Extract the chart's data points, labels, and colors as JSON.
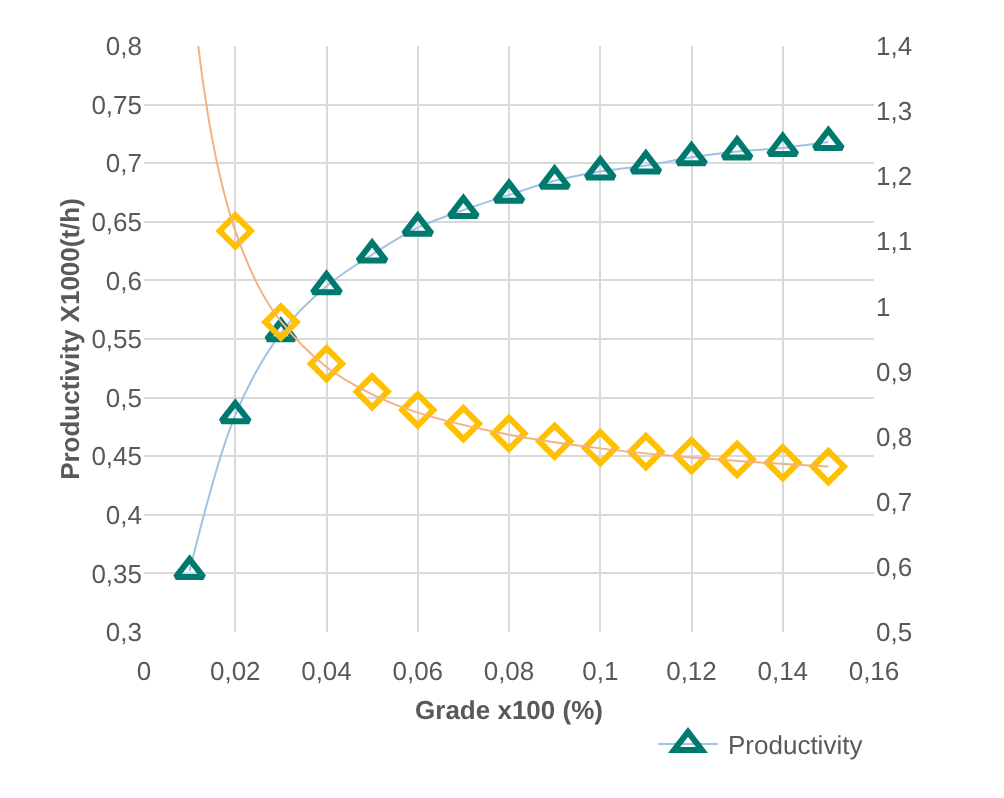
{
  "chart_data": {
    "type": "scatter",
    "xlabel": "Grade x100 (%)",
    "ylabel": "Productivity X1000(t/h)",
    "xlim": [
      0,
      0.16
    ],
    "xticks": [
      0,
      {
        "value": 0.02,
        "label": "0,02"
      },
      {
        "value": 0.04,
        "label": "0,04"
      },
      {
        "value": 0.06,
        "label": "0,06"
      },
      {
        "value": 0.08,
        "label": "0,08"
      },
      {
        "value": 0.1,
        "label": "0,1"
      },
      {
        "value": 0.12,
        "label": "0,12"
      },
      {
        "value": 0.14,
        "label": "0,14"
      },
      {
        "value": 0.16,
        "label": "0,16"
      }
    ],
    "ylim": [
      0.3,
      0.8
    ],
    "yticks": [
      {
        "value": 0.3,
        "label": "0,3"
      },
      {
        "value": 0.35,
        "label": "0,35"
      },
      {
        "value": 0.4,
        "label": "0,4"
      },
      {
        "value": 0.45,
        "label": "0,45"
      },
      {
        "value": 0.5,
        "label": "0,5"
      },
      {
        "value": 0.55,
        "label": "0,55"
      },
      {
        "value": 0.6,
        "label": "0,6"
      },
      {
        "value": 0.65,
        "label": "0,65"
      },
      {
        "value": 0.7,
        "label": "0,7"
      },
      {
        "value": 0.75,
        "label": "0,75"
      },
      {
        "value": 0.8,
        "label": "0,8"
      }
    ],
    "y2lim": [
      0.5,
      1.4
    ],
    "y2ticks": [
      {
        "value": 0.5,
        "label": "0,5"
      },
      {
        "value": 0.6,
        "label": "0,6"
      },
      {
        "value": 0.7,
        "label": "0,7"
      },
      {
        "value": 0.8,
        "label": "0,8"
      },
      {
        "value": 0.9,
        "label": "0,9"
      },
      1,
      {
        "value": 1.1,
        "label": "1,1"
      },
      {
        "value": 1.2,
        "label": "1,2"
      },
      {
        "value": 1.3,
        "label": "1,3"
      },
      {
        "value": 1.4,
        "label": "1,4"
      }
    ],
    "grid": true,
    "legend": "bottom right",
    "series": [
      {
        "name": "Productivity",
        "type": "line",
        "color": "#9dc3e6",
        "colors": [
          "#007a6e",
          "#007a6e",
          "#007a6e",
          "#007a6e",
          "#007a6e",
          "#007a6e",
          "#007a6e",
          "#007a6e",
          "#007a6e",
          "#007a6e",
          "#007a6e",
          "#007a6e",
          "#007a6e",
          "#007a6e",
          "#007a6e"
        ],
        "marker": "triangle",
        "x": [
          0.01,
          0.02,
          0.03,
          0.04,
          0.05,
          0.06,
          0.07,
          0.08,
          0.09,
          0.1,
          0.11,
          0.12,
          0.13,
          0.14,
          0.15
        ],
        "values": [
          0.352,
          0.485,
          0.555,
          0.595,
          0.622,
          0.645,
          0.66,
          0.673,
          0.685,
          0.693,
          0.698,
          0.705,
          0.71,
          0.713,
          0.718
        ]
      },
      {
        "axis": "y2",
        "color": "#ffc000",
        "marker": "diamond",
        "x": [
          0.02,
          0.03,
          0.04,
          0.05,
          0.06,
          0.07,
          0.08,
          0.09,
          0.1,
          0.11,
          0.12,
          0.13,
          0.14,
          0.15
        ],
        "values": [
          1.116,
          0.976,
          0.912,
          0.869,
          0.841,
          0.82,
          0.805,
          0.793,
          0.783,
          0.777,
          0.771,
          0.765,
          0.76,
          0.754
        ]
      },
      {
        "type": "line",
        "axis": "y2",
        "color": "#f4b183",
        "marker": "none",
        "x": [
          0.0119,
          0.013,
          0.015,
          0.0175,
          0.02,
          0.025,
          0.03,
          0.04,
          0.05,
          0.06,
          0.08,
          0.1,
          0.12,
          0.15
        ],
        "values": [
          1.4,
          1.341,
          1.255,
          1.176,
          1.116,
          1.032,
          0.977,
          0.907,
          0.865,
          0.837,
          0.803,
          0.782,
          0.768,
          0.754
        ]
      }
    ]
  }
}
